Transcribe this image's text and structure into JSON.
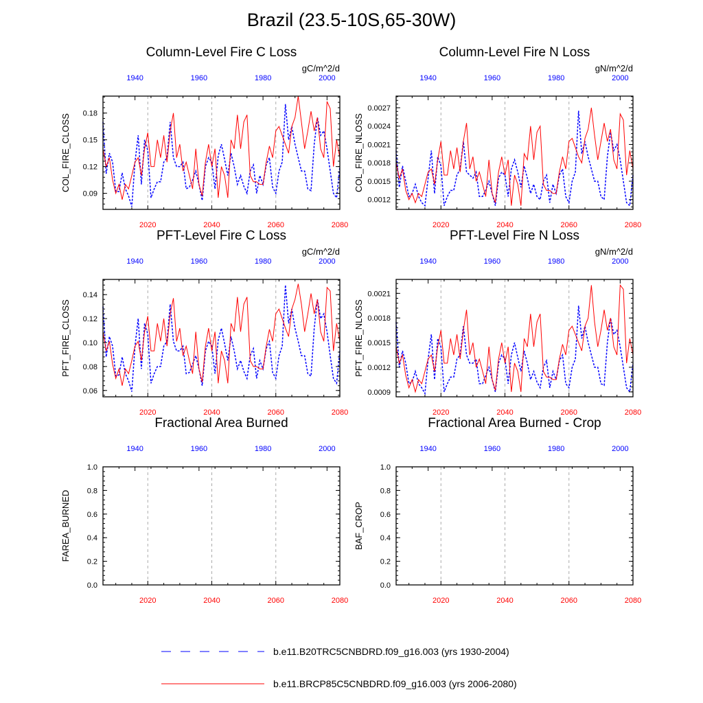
{
  "title": "Brazil (23.5-10S,65-30W)",
  "colors": {
    "historical": "#0000ff",
    "future": "#ff0000",
    "grid": "#aaaaaa",
    "axis": "#000000"
  },
  "legend": {
    "entries": [
      {
        "label": "b.e11.B20TRC5CNBDRD.f09_g16.003 (yrs 1930-2004)",
        "color": "#0000ff",
        "style": "dashed"
      },
      {
        "label": "b.e11.BRCP85C5CNBDRD.f09_g16.003 (yrs 2006-2080)",
        "color": "#ff0000",
        "style": "solid"
      }
    ]
  },
  "chart_data": [
    {
      "type": "line",
      "title": "Column-Level Fire C Loss",
      "units": "gC/m^2/d",
      "ylabel": "COL_FIRE_CLOSS",
      "ylim": [
        0.072,
        0.199
      ],
      "yticks": [
        0.09,
        0.12,
        0.15,
        0.18
      ],
      "yticklabels": [
        "0.09",
        "0.12",
        "0.15",
        "0.18"
      ],
      "x_bottom": {
        "label_color": "red",
        "range": [
          2006,
          2080
        ],
        "ticks": [
          2020,
          2040,
          2060,
          2080
        ]
      },
      "x_top": {
        "label_color": "blue",
        "range": [
          1930,
          2004
        ],
        "ticks": [
          1940,
          1960,
          1980,
          2000
        ]
      },
      "series": [
        {
          "name": "b.e11.B20TRC5CNBDRD.f09_g16.003 (yrs 1930-2004)",
          "x_axis": "top",
          "x_start": 1930,
          "values": [
            0.17,
            0.112,
            0.135,
            0.125,
            0.092,
            0.092,
            0.113,
            0.095,
            0.087,
            0.075,
            0.125,
            0.155,
            0.1,
            0.15,
            0.138,
            0.085,
            0.095,
            0.103,
            0.103,
            0.125,
            0.13,
            0.17,
            0.13,
            0.12,
            0.12,
            0.125,
            0.095,
            0.097,
            0.105,
            0.115,
            0.1,
            0.082,
            0.12,
            0.13,
            0.125,
            0.095,
            0.132,
            0.145,
            0.128,
            0.11,
            0.135,
            0.12,
            0.1,
            0.11,
            0.098,
            0.09,
            0.115,
            0.122,
            0.09,
            0.11,
            0.1,
            0.122,
            0.13,
            0.097,
            0.09,
            0.115,
            0.125,
            0.19,
            0.15,
            0.165,
            0.145,
            0.13,
            0.115,
            0.115,
            0.095,
            0.093,
            0.145,
            0.175,
            0.155,
            0.16,
            0.14,
            0.115,
            0.09,
            0.085,
            0.12
          ]
        },
        {
          "name": "b.e11.BRCP85C5CNBDRD.f09_g16.003 (yrs 2006-2080)",
          "x_axis": "bottom",
          "x_start": 2006,
          "values": [
            0.14,
            0.12,
            0.13,
            0.105,
            0.09,
            0.1,
            0.083,
            0.1,
            0.095,
            0.11,
            0.125,
            0.13,
            0.11,
            0.14,
            0.158,
            0.12,
            0.12,
            0.15,
            0.13,
            0.155,
            0.125,
            0.16,
            0.18,
            0.13,
            0.145,
            0.115,
            0.125,
            0.11,
            0.095,
            0.14,
            0.1,
            0.087,
            0.125,
            0.145,
            0.12,
            0.14,
            0.085,
            0.12,
            0.11,
            0.085,
            0.15,
            0.14,
            0.178,
            0.14,
            0.17,
            0.178,
            0.11,
            0.103,
            0.103,
            0.1,
            0.1,
            0.125,
            0.143,
            0.13,
            0.16,
            0.165,
            0.155,
            0.145,
            0.135,
            0.165,
            0.175,
            0.2,
            0.17,
            0.14,
            0.16,
            0.182,
            0.16,
            0.175,
            0.14,
            0.13,
            0.193,
            0.185,
            0.12,
            0.15,
            0.13
          ]
        }
      ]
    },
    {
      "type": "line",
      "title": "Column-Level Fire N Loss",
      "units": "gN/m^2/d",
      "ylabel": "COL_FIRE_NLOSS",
      "ylim": [
        0.00104,
        0.00289
      ],
      "yticks": [
        0.0012,
        0.0015,
        0.0018,
        0.0021,
        0.0024,
        0.0027
      ],
      "yticklabels": [
        "0.0012",
        "0.0015",
        "0.0018",
        "0.0021",
        "0.0024",
        "0.0027"
      ],
      "x_bottom": {
        "label_color": "red",
        "range": [
          2006,
          2080
        ],
        "ticks": [
          2020,
          2040,
          2060,
          2080
        ]
      },
      "x_top": {
        "label_color": "blue",
        "range": [
          1930,
          2004
        ],
        "ticks": [
          1940,
          1960,
          1980,
          2000
        ]
      },
      "series": [
        {
          "name": "b.e11.B20TRC5CNBDRD.f09_g16.003 (yrs 1930-2004)",
          "x_axis": "top",
          "x_start": 1930,
          "values": [
            0.002,
            0.0014,
            0.00175,
            0.0015,
            0.00125,
            0.0013,
            0.00145,
            0.00125,
            0.00115,
            0.0011,
            0.00155,
            0.002,
            0.0013,
            0.0019,
            0.00175,
            0.0011,
            0.00125,
            0.00135,
            0.00135,
            0.0016,
            0.0017,
            0.00215,
            0.00165,
            0.0016,
            0.00155,
            0.00165,
            0.00125,
            0.00125,
            0.00135,
            0.0015,
            0.0013,
            0.0011,
            0.00155,
            0.00165,
            0.0016,
            0.00125,
            0.0017,
            0.00185,
            0.00165,
            0.0014,
            0.00175,
            0.00155,
            0.0013,
            0.00145,
            0.00125,
            0.0012,
            0.0015,
            0.0016,
            0.00115,
            0.00145,
            0.0013,
            0.0016,
            0.0017,
            0.00125,
            0.00115,
            0.0015,
            0.00165,
            0.00265,
            0.00195,
            0.00215,
            0.0019,
            0.0017,
            0.0015,
            0.0015,
            0.00125,
            0.0012,
            0.0019,
            0.0023,
            0.002,
            0.0021,
            0.00185,
            0.0015,
            0.00115,
            0.0011,
            0.0016
          ]
        },
        {
          "name": "b.e11.BRCP85C5CNBDRD.f09_g16.003 (yrs 2006-2080)",
          "x_axis": "bottom",
          "x_start": 2006,
          "values": [
            0.0018,
            0.00155,
            0.0017,
            0.00135,
            0.0012,
            0.0013,
            0.00115,
            0.0013,
            0.00125,
            0.00145,
            0.00165,
            0.0017,
            0.00145,
            0.00185,
            0.00215,
            0.0016,
            0.0016,
            0.002,
            0.0017,
            0.00205,
            0.00165,
            0.00215,
            0.00245,
            0.0017,
            0.0019,
            0.0015,
            0.00165,
            0.00145,
            0.00125,
            0.00185,
            0.0013,
            0.00115,
            0.00165,
            0.0019,
            0.0016,
            0.00185,
            0.0011,
            0.0016,
            0.00145,
            0.0011,
            0.00195,
            0.00185,
            0.0024,
            0.00185,
            0.0023,
            0.0024,
            0.00145,
            0.00135,
            0.00135,
            0.0013,
            0.0013,
            0.00165,
            0.0019,
            0.0017,
            0.00215,
            0.0022,
            0.00205,
            0.0019,
            0.0018,
            0.0022,
            0.00235,
            0.0027,
            0.00225,
            0.00185,
            0.00215,
            0.00245,
            0.00215,
            0.00235,
            0.00185,
            0.0017,
            0.0026,
            0.0025,
            0.0016,
            0.002,
            0.0017
          ]
        }
      ]
    },
    {
      "type": "line",
      "title": "PFT-Level Fire C Loss",
      "units": "gC/m^2/d",
      "ylabel": "PFT_FIRE_CLOSS",
      "ylim": [
        0.0547,
        0.1527
      ],
      "yticks": [
        0.06,
        0.08,
        0.1,
        0.12,
        0.14
      ],
      "yticklabels": [
        "0.06",
        "0.08",
        "0.10",
        "0.12",
        "0.14"
      ],
      "x_bottom": {
        "label_color": "red",
        "range": [
          2006,
          2080
        ],
        "ticks": [
          2020,
          2040,
          2060,
          2080
        ]
      },
      "x_top": {
        "label_color": "blue",
        "range": [
          1930,
          2004
        ],
        "ticks": [
          1940,
          1960,
          1980,
          2000
        ]
      },
      "series": [
        {
          "name": "b.e11.B20TRC5CNBDRD.f09_g16.003 (yrs 1930-2004)",
          "x_axis": "top",
          "x_start": 1930,
          "values": [
            0.13,
            0.088,
            0.105,
            0.097,
            0.072,
            0.073,
            0.088,
            0.074,
            0.068,
            0.059,
            0.097,
            0.12,
            0.078,
            0.116,
            0.107,
            0.066,
            0.074,
            0.08,
            0.08,
            0.097,
            0.101,
            0.132,
            0.101,
            0.093,
            0.093,
            0.097,
            0.074,
            0.075,
            0.082,
            0.089,
            0.078,
            0.064,
            0.093,
            0.101,
            0.097,
            0.074,
            0.102,
            0.112,
            0.099,
            0.085,
            0.105,
            0.093,
            0.078,
            0.085,
            0.076,
            0.07,
            0.089,
            0.095,
            0.07,
            0.085,
            0.078,
            0.095,
            0.101,
            0.075,
            0.07,
            0.089,
            0.097,
            0.148,
            0.116,
            0.128,
            0.112,
            0.101,
            0.089,
            0.089,
            0.074,
            0.072,
            0.112,
            0.136,
            0.12,
            0.124,
            0.109,
            0.089,
            0.07,
            0.066,
            0.093
          ]
        },
        {
          "name": "b.e11.BRCP85C5CNBDRD.f09_g16.003 (yrs 2006-2080)",
          "x_axis": "bottom",
          "x_start": 2006,
          "values": [
            0.109,
            0.093,
            0.101,
            0.082,
            0.07,
            0.078,
            0.064,
            0.078,
            0.074,
            0.085,
            0.097,
            0.101,
            0.085,
            0.109,
            0.122,
            0.093,
            0.093,
            0.116,
            0.101,
            0.12,
            0.097,
            0.124,
            0.137,
            0.101,
            0.112,
            0.089,
            0.097,
            0.085,
            0.074,
            0.109,
            0.078,
            0.067,
            0.097,
            0.112,
            0.093,
            0.109,
            0.066,
            0.093,
            0.085,
            0.066,
            0.116,
            0.109,
            0.138,
            0.109,
            0.132,
            0.138,
            0.085,
            0.08,
            0.08,
            0.078,
            0.078,
            0.097,
            0.111,
            0.101,
            0.124,
            0.128,
            0.12,
            0.112,
            0.105,
            0.128,
            0.136,
            0.149,
            0.132,
            0.109,
            0.124,
            0.141,
            0.124,
            0.136,
            0.109,
            0.101,
            0.146,
            0.143,
            0.093,
            0.116,
            0.101
          ]
        }
      ]
    },
    {
      "type": "line",
      "title": "PFT-Level Fire N Loss",
      "units": "gN/m^2/d",
      "ylabel": "PFT_FIRE_NLOSS",
      "ylim": [
        0.00084,
        0.00227
      ],
      "yticks": [
        0.0009,
        0.0012,
        0.0015,
        0.0018,
        0.0021
      ],
      "yticklabels": [
        "0.0009",
        "0.0012",
        "0.0015",
        "0.0018",
        "0.0021"
      ],
      "x_bottom": {
        "label_color": "red",
        "range": [
          2006,
          2080
        ],
        "ticks": [
          2020,
          2040,
          2060,
          2080
        ]
      },
      "x_top": {
        "label_color": "blue",
        "range": [
          1930,
          2004
        ],
        "ticks": [
          1940,
          1960,
          1980,
          2000
        ]
      },
      "series": [
        {
          "name": "b.e11.B20TRC5CNBDRD.f09_g16.003 (yrs 1930-2004)",
          "x_axis": "top",
          "x_start": 1930,
          "values": [
            0.00175,
            0.0012,
            0.0014,
            0.00125,
            0.001,
            0.00102,
            0.00115,
            0.001,
            0.00095,
            0.00088,
            0.0013,
            0.0016,
            0.00105,
            0.00155,
            0.00145,
            0.0009,
            0.001,
            0.00108,
            0.00108,
            0.0013,
            0.00135,
            0.0017,
            0.00135,
            0.00125,
            0.00125,
            0.0013,
            0.001,
            0.001,
            0.0011,
            0.0012,
            0.00105,
            0.0009,
            0.00125,
            0.00135,
            0.0013,
            0.001,
            0.00135,
            0.0015,
            0.00132,
            0.00115,
            0.0014,
            0.00125,
            0.00105,
            0.00115,
            0.00102,
            0.00095,
            0.0012,
            0.00128,
            0.00095,
            0.00115,
            0.00105,
            0.00128,
            0.00135,
            0.001,
            0.00095,
            0.0012,
            0.0013,
            0.00195,
            0.00155,
            0.0017,
            0.0015,
            0.00135,
            0.0012,
            0.0012,
            0.001,
            0.00098,
            0.0015,
            0.0018,
            0.0016,
            0.00165,
            0.00145,
            0.0012,
            0.00095,
            0.0009,
            0.00125
          ]
        },
        {
          "name": "b.e11.BRCP85C5CNBDRD.f09_g16.003 (yrs 2006-2080)",
          "x_axis": "bottom",
          "x_start": 2006,
          "values": [
            0.00145,
            0.00125,
            0.00135,
            0.0011,
            0.00095,
            0.00105,
            0.0009,
            0.00105,
            0.001,
            0.00115,
            0.0013,
            0.00135,
            0.00115,
            0.00145,
            0.00165,
            0.00125,
            0.00125,
            0.00155,
            0.00135,
            0.0016,
            0.0013,
            0.00165,
            0.0019,
            0.00135,
            0.0015,
            0.0012,
            0.0013,
            0.00115,
            0.001,
            0.00145,
            0.00105,
            0.00092,
            0.0013,
            0.0015,
            0.00125,
            0.00145,
            0.0009,
            0.00125,
            0.00115,
            0.0009,
            0.00155,
            0.00145,
            0.00185,
            0.00145,
            0.00175,
            0.00185,
            0.00115,
            0.00108,
            0.00108,
            0.00105,
            0.00105,
            0.0013,
            0.00148,
            0.00135,
            0.00165,
            0.0017,
            0.0016,
            0.0015,
            0.0014,
            0.0017,
            0.0018,
            0.0022,
            0.00175,
            0.00145,
            0.00165,
            0.0019,
            0.00165,
            0.0018,
            0.00145,
            0.00135,
            0.0022,
            0.00215,
            0.00125,
            0.00155,
            0.00135
          ]
        }
      ]
    },
    {
      "type": "line",
      "title": "Fractional Area Burned",
      "units": "",
      "ylabel": "FAREA_BURNED",
      "ylim": [
        0.0,
        1.0
      ],
      "yticks": [
        0.0,
        0.2,
        0.4,
        0.6,
        0.8,
        1.0
      ],
      "yticklabels": [
        "0.0",
        "0.2",
        "0.4",
        "0.6",
        "0.8",
        "1.0"
      ],
      "x_bottom": {
        "label_color": "red",
        "range": [
          2006,
          2080
        ],
        "ticks": [
          2020,
          2040,
          2060,
          2080
        ]
      },
      "x_top": {
        "label_color": "blue",
        "range": [
          1930,
          2004
        ],
        "ticks": [
          1940,
          1960,
          1980,
          2000
        ]
      },
      "series": []
    },
    {
      "type": "line",
      "title": "Fractional Area Burned - Crop",
      "units": "",
      "ylabel": "BAF_CROP",
      "ylim": [
        0.0,
        1.0
      ],
      "yticks": [
        0.0,
        0.2,
        0.4,
        0.6,
        0.8,
        1.0
      ],
      "yticklabels": [
        "0.0",
        "0.2",
        "0.4",
        "0.6",
        "0.8",
        "1.0"
      ],
      "x_bottom": {
        "label_color": "red",
        "range": [
          2006,
          2080
        ],
        "ticks": [
          2020,
          2040,
          2060,
          2080
        ]
      },
      "x_top": {
        "label_color": "blue",
        "range": [
          1930,
          2004
        ],
        "ticks": [
          1940,
          1960,
          1980,
          2000
        ]
      },
      "series": []
    }
  ]
}
